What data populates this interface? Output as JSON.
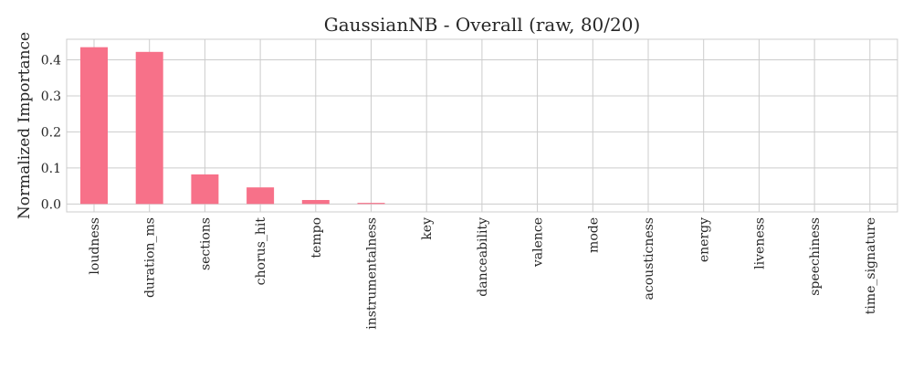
{
  "chart_data": {
    "type": "bar",
    "title": "GaussianNB - Overall (raw, 80/20)",
    "xlabel": "",
    "ylabel": "Normalized Importance",
    "categories": [
      "loudness",
      "duration_ms",
      "sections",
      "chorus_hit",
      "tempo",
      "instrumentalness",
      "key",
      "danceability",
      "valence",
      "mode",
      "acousticness",
      "energy",
      "liveness",
      "speechiness",
      "time_signature"
    ],
    "values": [
      0.435,
      0.422,
      0.082,
      0.046,
      0.011,
      0.003,
      0.0,
      0.0,
      0.0,
      0.0,
      0.0,
      0.0,
      0.0,
      0.0,
      0.0
    ],
    "ylim": [
      -0.022,
      0.457
    ],
    "yticks": [
      0.0,
      0.1,
      0.2,
      0.3,
      0.4
    ],
    "ytick_labels": [
      "0.0",
      "0.1",
      "0.2",
      "0.3",
      "0.4"
    ],
    "grid": true,
    "bar_color": "#f77189",
    "grid_color": "#cccccc",
    "spine_color": "#cccccc"
  }
}
